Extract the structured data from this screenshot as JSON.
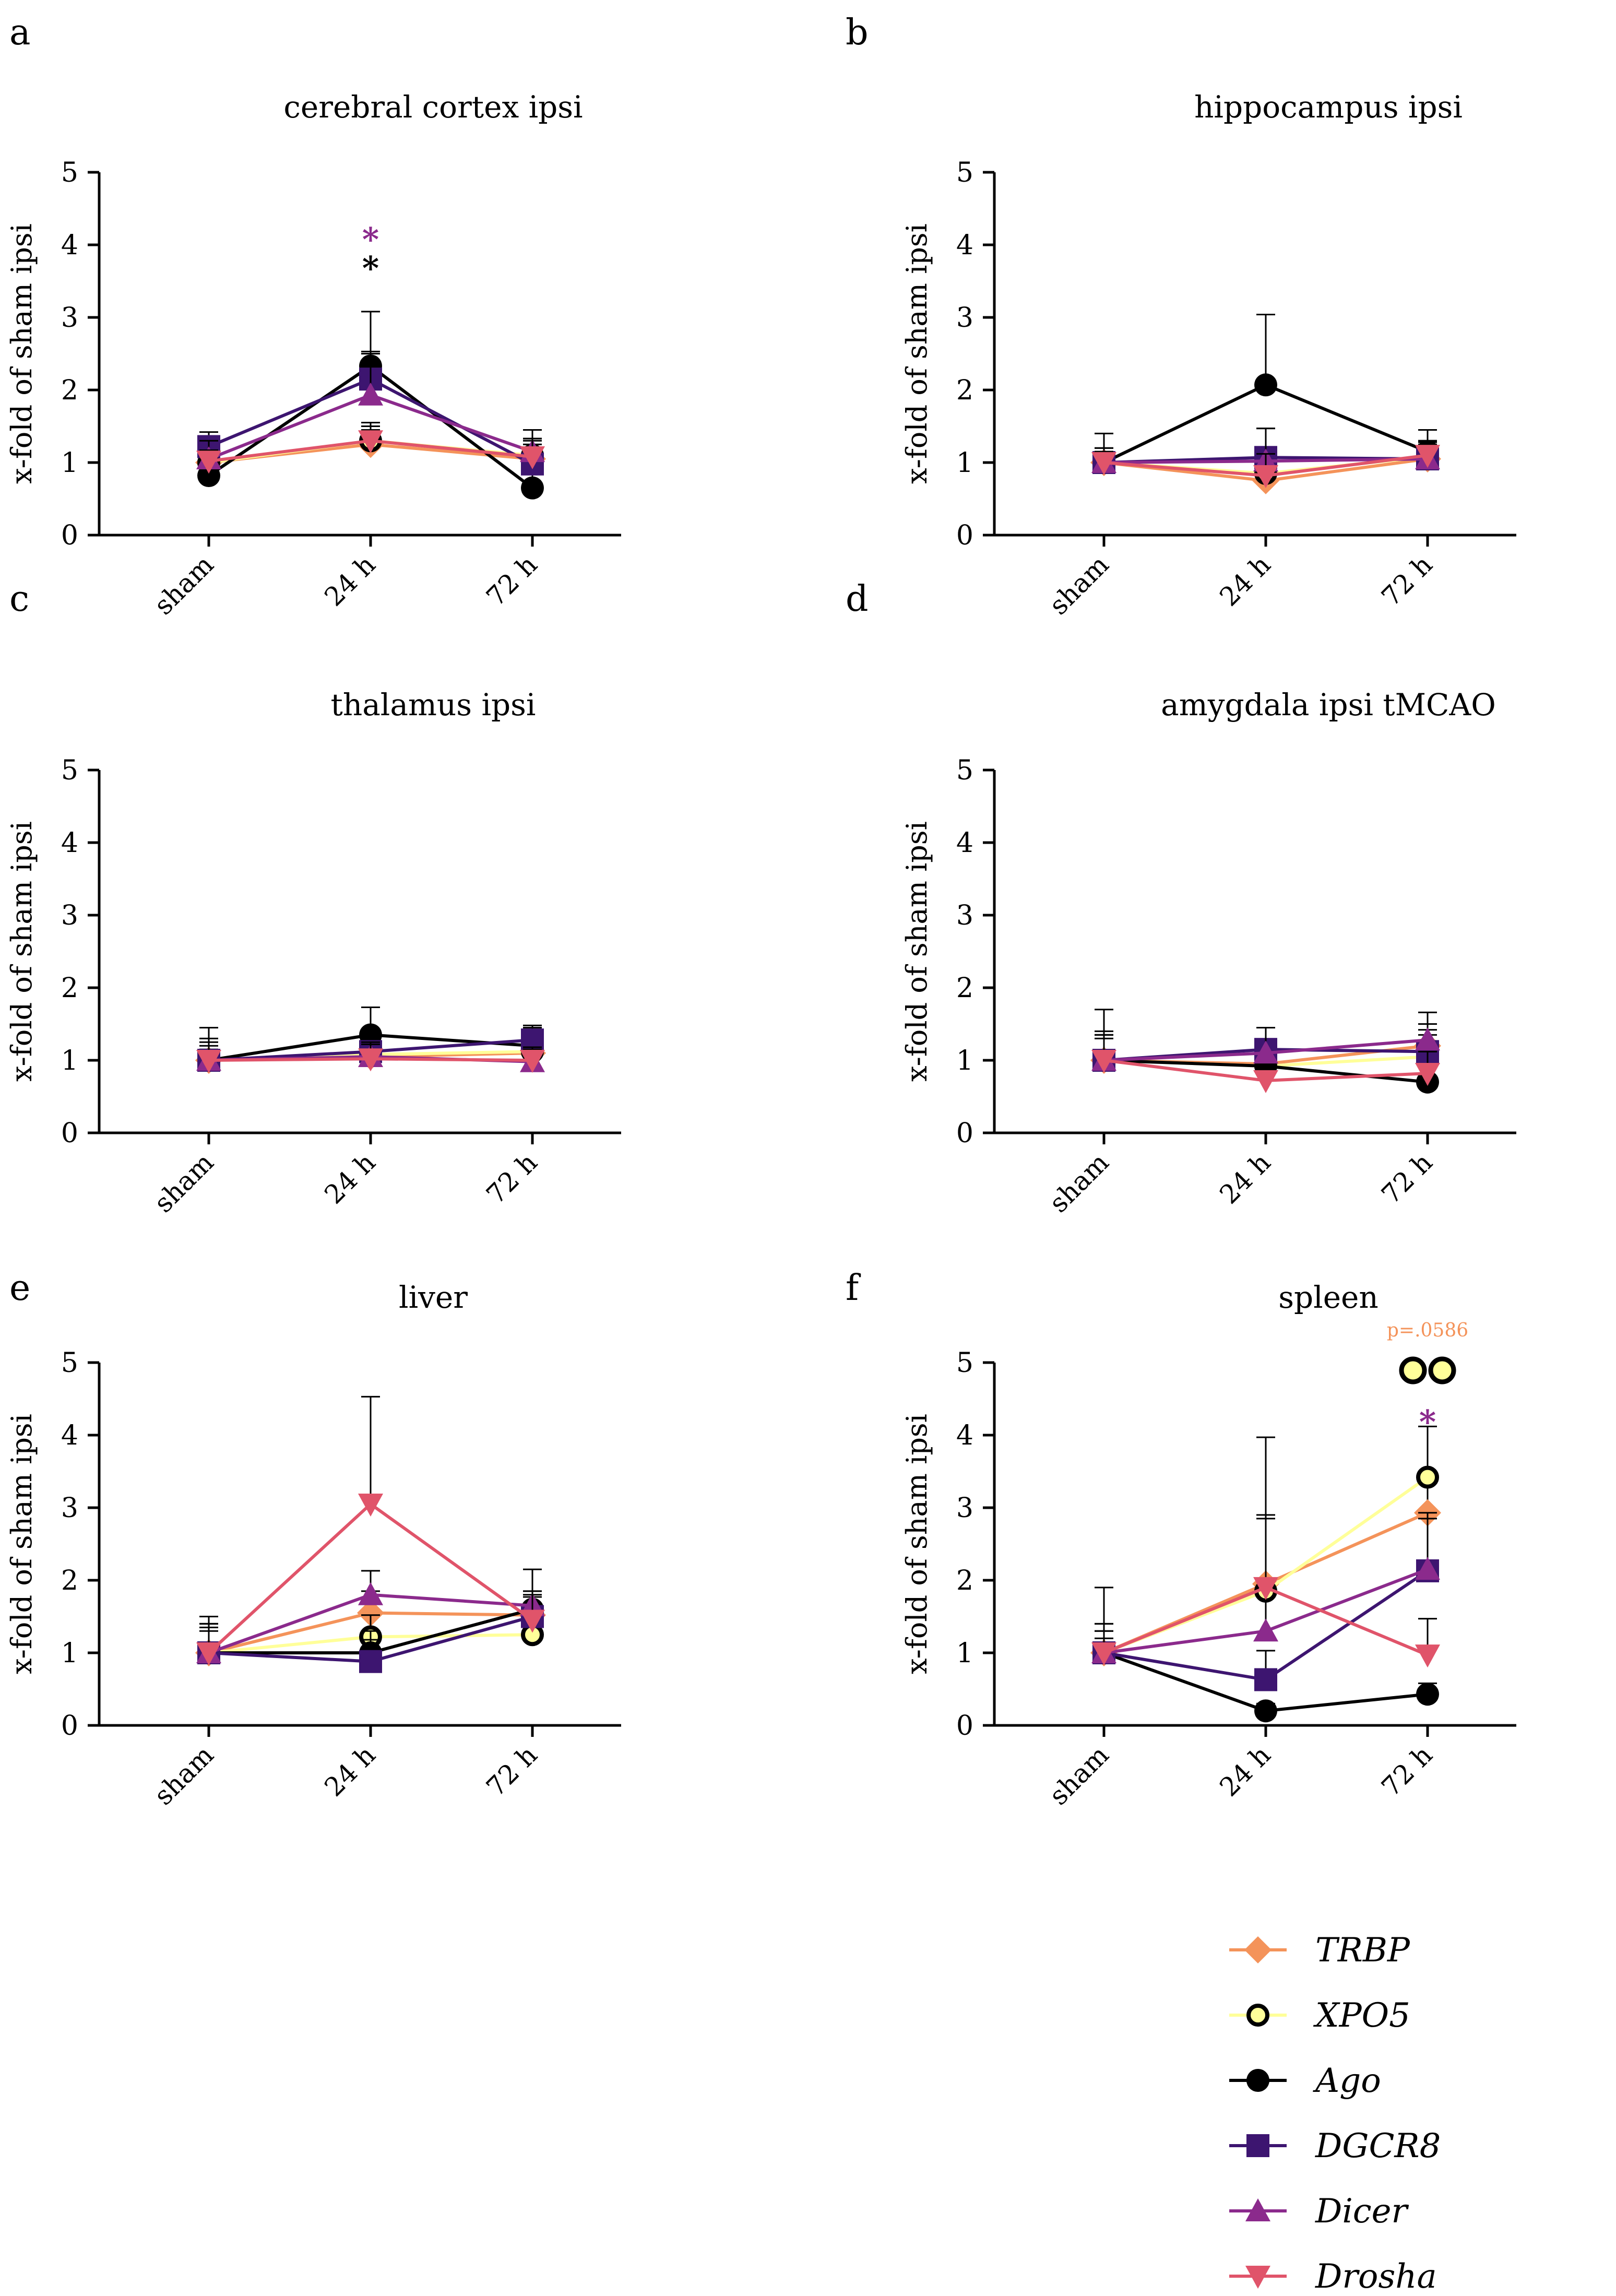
{
  "figure": {
    "y_axis_label": "x-fold of sham ipsi",
    "categories": [
      "sham",
      "24 h",
      "72 h"
    ],
    "y_ticks": [
      "0",
      "1",
      "2",
      "3",
      "4",
      "5"
    ]
  },
  "legend": [
    {
      "name": "TRBP",
      "color": "#F4935A",
      "marker": "diamond"
    },
    {
      "name": "XPO5",
      "color": "#FFFF99",
      "marker": "open-circle"
    },
    {
      "name": "Ago",
      "color": "#000000",
      "marker": "circle"
    },
    {
      "name": "DGCR8",
      "color": "#3D1570",
      "marker": "square"
    },
    {
      "name": "Dicer",
      "color": "#8B2A8C",
      "marker": "triangle-up"
    },
    {
      "name": "Drosha",
      "color": "#E0546A",
      "marker": "triangle-down"
    }
  ],
  "chart_data": [
    {
      "panel": "a",
      "title": "cerebral cortex ipsi",
      "type": "line",
      "categories": [
        "sham",
        "24 h",
        "72 h"
      ],
      "ylim": [
        0,
        5
      ],
      "ylabel": "x-fold of sham ipsi",
      "series": [
        {
          "name": "TRBP",
          "values": [
            1.0,
            1.25,
            1.05
          ],
          "errors": [
            0.1,
            0.2,
            0.2
          ]
        },
        {
          "name": "XPO5",
          "values": [
            1.0,
            1.3,
            1.1
          ],
          "errors": [
            0.15,
            0.2,
            0.2
          ]
        },
        {
          "name": "Ago",
          "values": [
            0.82,
            2.33,
            0.65
          ],
          "errors": [
            0.3,
            0.75,
            0.35
          ]
        },
        {
          "name": "DGCR8",
          "values": [
            1.22,
            2.15,
            0.98
          ],
          "errors": [
            0.2,
            0.35,
            0.35
          ]
        },
        {
          "name": "Dicer",
          "values": [
            1.05,
            1.93,
            1.15
          ],
          "errors": [
            0.25,
            0.6,
            0.3
          ]
        },
        {
          "name": "Drosha",
          "values": [
            1.02,
            1.3,
            1.08
          ],
          "errors": [
            0.15,
            0.25,
            0.25
          ]
        }
      ],
      "annotations": [
        {
          "text": "*",
          "category": "24 h",
          "color": "#8B2A8C"
        },
        {
          "text": "*",
          "category": "24 h",
          "color": "#000000"
        }
      ]
    },
    {
      "panel": "b",
      "title": "hippocampus ipsi",
      "type": "line",
      "categories": [
        "sham",
        "24 h",
        "72 h"
      ],
      "ylim": [
        0,
        5
      ],
      "ylabel": "x-fold of sham ipsi",
      "series": [
        {
          "name": "TRBP",
          "values": [
            1.0,
            0.75,
            1.05
          ],
          "errors": [
            0.1,
            0.2,
            0.15
          ]
        },
        {
          "name": "XPO5",
          "values": [
            1.0,
            0.85,
            1.08
          ],
          "errors": [
            0.15,
            0.25,
            0.2
          ]
        },
        {
          "name": "Ago",
          "values": [
            1.0,
            2.07,
            1.15
          ],
          "errors": [
            0.4,
            0.97,
            0.3
          ]
        },
        {
          "name": "DGCR8",
          "values": [
            1.0,
            1.07,
            1.05
          ],
          "errors": [
            0.2,
            0.4,
            0.25
          ]
        },
        {
          "name": "Dicer",
          "values": [
            1.0,
            1.02,
            1.05
          ],
          "errors": [
            0.2,
            0.45,
            0.2
          ]
        },
        {
          "name": "Drosha",
          "values": [
            1.0,
            0.82,
            1.1
          ],
          "errors": [
            0.15,
            0.3,
            0.2
          ]
        }
      ]
    },
    {
      "panel": "c",
      "title": "thalamus ipsi",
      "type": "line",
      "categories": [
        "sham",
        "24 h",
        "72 h"
      ],
      "ylim": [
        0,
        5
      ],
      "ylabel": "x-fold of sham ipsi",
      "series": [
        {
          "name": "TRBP",
          "values": [
            1.0,
            1.05,
            1.1
          ],
          "errors": [
            0.1,
            0.15,
            0.15
          ]
        },
        {
          "name": "XPO5",
          "values": [
            1.0,
            1.08,
            1.12
          ],
          "errors": [
            0.15,
            0.2,
            0.2
          ]
        },
        {
          "name": "Ago",
          "values": [
            1.0,
            1.35,
            1.2
          ],
          "errors": [
            0.45,
            0.38,
            0.25
          ]
        },
        {
          "name": "DGCR8",
          "values": [
            1.0,
            1.12,
            1.28
          ],
          "errors": [
            0.3,
            0.3,
            0.2
          ]
        },
        {
          "name": "Dicer",
          "values": [
            1.0,
            1.05,
            0.98
          ],
          "errors": [
            0.25,
            0.2,
            0.2
          ]
        },
        {
          "name": "Drosha",
          "values": [
            1.0,
            1.02,
            1.0
          ],
          "errors": [
            0.2,
            0.2,
            0.15
          ]
        }
      ]
    },
    {
      "panel": "d",
      "title": "amygdala ipsi tMCAO",
      "type": "line",
      "categories": [
        "sham",
        "24 h",
        "72 h"
      ],
      "ylim": [
        0,
        5
      ],
      "ylabel": "x-fold of sham ipsi",
      "series": [
        {
          "name": "TRBP",
          "values": [
            1.0,
            0.95,
            1.2
          ],
          "errors": [
            0.3,
            0.2,
            0.3
          ]
        },
        {
          "name": "XPO5",
          "values": [
            1.0,
            0.92,
            1.05
          ],
          "errors": [
            0.35,
            0.3,
            0.3
          ]
        },
        {
          "name": "Ago",
          "values": [
            1.0,
            0.92,
            0.7
          ],
          "errors": [
            0.7,
            0.3,
            0.2
          ]
        },
        {
          "name": "DGCR8",
          "values": [
            1.0,
            1.15,
            1.12
          ],
          "errors": [
            0.35,
            0.3,
            0.3
          ]
        },
        {
          "name": "Dicer",
          "values": [
            1.0,
            1.1,
            1.28
          ],
          "errors": [
            0.35,
            0.35,
            0.38
          ]
        },
        {
          "name": "Drosha",
          "values": [
            1.0,
            0.72,
            0.82
          ],
          "errors": [
            0.4,
            0.2,
            0.3
          ]
        }
      ]
    },
    {
      "panel": "e",
      "title": "liver",
      "type": "line",
      "categories": [
        "sham",
        "24 h",
        "72 h"
      ],
      "ylim": [
        0,
        5
      ],
      "ylabel": "x-fold of sham ipsi",
      "series": [
        {
          "name": "TRBP",
          "values": [
            1.0,
            1.55,
            1.52
          ],
          "errors": [
            0.35,
            0.3,
            0.25
          ]
        },
        {
          "name": "XPO5",
          "values": [
            1.0,
            1.22,
            1.25
          ],
          "errors": [
            0.3,
            0.3,
            0.3
          ]
        },
        {
          "name": "Ago",
          "values": [
            1.0,
            1.0,
            1.6
          ],
          "errors": [
            0.5,
            0.3,
            0.25
          ]
        },
        {
          "name": "DGCR8",
          "values": [
            1.0,
            0.88,
            1.5
          ],
          "errors": [
            0.4,
            0.3,
            0.3
          ]
        },
        {
          "name": "Dicer",
          "values": [
            1.0,
            1.8,
            1.65
          ],
          "errors": [
            0.4,
            0.33,
            0.5
          ]
        },
        {
          "name": "Drosha",
          "values": [
            1.0,
            3.05,
            1.45
          ],
          "errors": [
            0.4,
            1.48,
            0.4
          ]
        }
      ]
    },
    {
      "panel": "f",
      "title": "spleen",
      "type": "line",
      "categories": [
        "sham",
        "24 h",
        "72 h"
      ],
      "ylim": [
        0,
        5
      ],
      "ylabel": "x-fold of sham ipsi",
      "series": [
        {
          "name": "TRBP",
          "values": [
            1.0,
            1.95,
            2.93
          ],
          "errors": [
            0.3,
            0.9,
            0.5
          ]
        },
        {
          "name": "XPO5",
          "values": [
            1.0,
            1.85,
            3.42
          ],
          "errors": [
            0.4,
            2.12,
            0.7
          ]
        },
        {
          "name": "Ago",
          "values": [
            1.0,
            0.2,
            0.43
          ],
          "errors": [
            0.2,
            0.1,
            0.15
          ]
        },
        {
          "name": "DGCR8",
          "values": [
            1.0,
            0.63,
            2.13
          ],
          "errors": [
            0.3,
            0.4,
            0.8
          ]
        },
        {
          "name": "Dicer",
          "values": [
            1.0,
            1.3,
            2.15
          ],
          "errors": [
            0.4,
            0.6,
            0.7
          ]
        },
        {
          "name": "Drosha",
          "values": [
            1.0,
            1.9,
            0.97
          ],
          "errors": [
            0.9,
            1.0,
            0.5
          ]
        }
      ],
      "annotations": [
        {
          "text": "p=.0586",
          "category": "72 h",
          "color": "#F4935A"
        },
        {
          "text": "*",
          "category": "72 h",
          "color": "#8B2A8C"
        }
      ]
    }
  ]
}
